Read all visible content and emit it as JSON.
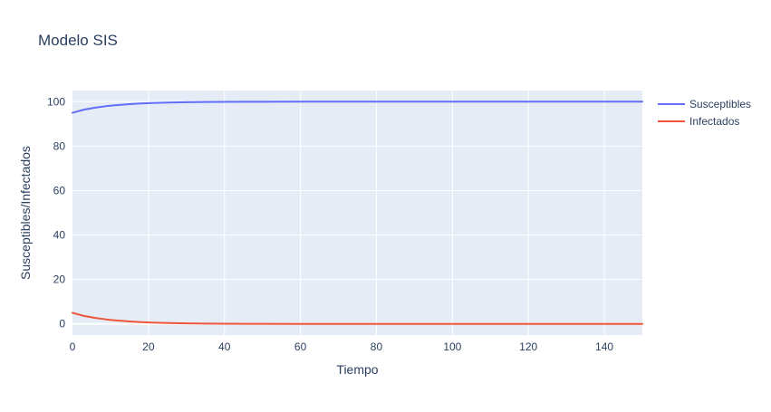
{
  "chart_data": {
    "type": "line",
    "title": "Modelo SIS",
    "xlabel": "Tiempo",
    "ylabel": "Susceptibles/Infectados",
    "xlim": [
      0,
      150
    ],
    "ylim": [
      -5,
      105
    ],
    "xticks": [
      0,
      20,
      40,
      60,
      80,
      100,
      120,
      140
    ],
    "yticks": [
      0,
      20,
      40,
      60,
      80,
      100
    ],
    "grid": true,
    "legend": "top-right outside",
    "colors": {
      "plot_bg": "#e5ecf6",
      "grid": "#ffffff",
      "text": "#2a3f5f"
    },
    "series": [
      {
        "name": "Susceptibles",
        "color": "#636efa",
        "x": [
          0,
          3,
          6,
          9,
          12,
          15,
          18,
          21,
          24,
          27,
          30,
          35,
          40,
          45,
          50,
          60,
          70,
          80,
          90,
          100,
          110,
          120,
          130,
          140,
          150
        ],
        "y": [
          95,
          96.4,
          97.3,
          98,
          98.5,
          98.9,
          99.2,
          99.4,
          99.55,
          99.67,
          99.75,
          99.85,
          99.92,
          99.96,
          99.98,
          99.99,
          100,
          100,
          100,
          100,
          100,
          100,
          100,
          100,
          100
        ]
      },
      {
        "name": "Infectados",
        "color": "#ef553b",
        "x": [
          0,
          3,
          6,
          9,
          12,
          15,
          18,
          21,
          24,
          27,
          30,
          35,
          40,
          45,
          50,
          60,
          70,
          80,
          90,
          100,
          110,
          120,
          130,
          140,
          150
        ],
        "y": [
          5,
          3.6,
          2.7,
          2,
          1.5,
          1.1,
          0.8,
          0.6,
          0.45,
          0.33,
          0.25,
          0.15,
          0.08,
          0.04,
          0.02,
          0.01,
          0,
          0,
          0,
          0,
          0,
          0,
          0,
          0,
          0
        ]
      }
    ]
  }
}
